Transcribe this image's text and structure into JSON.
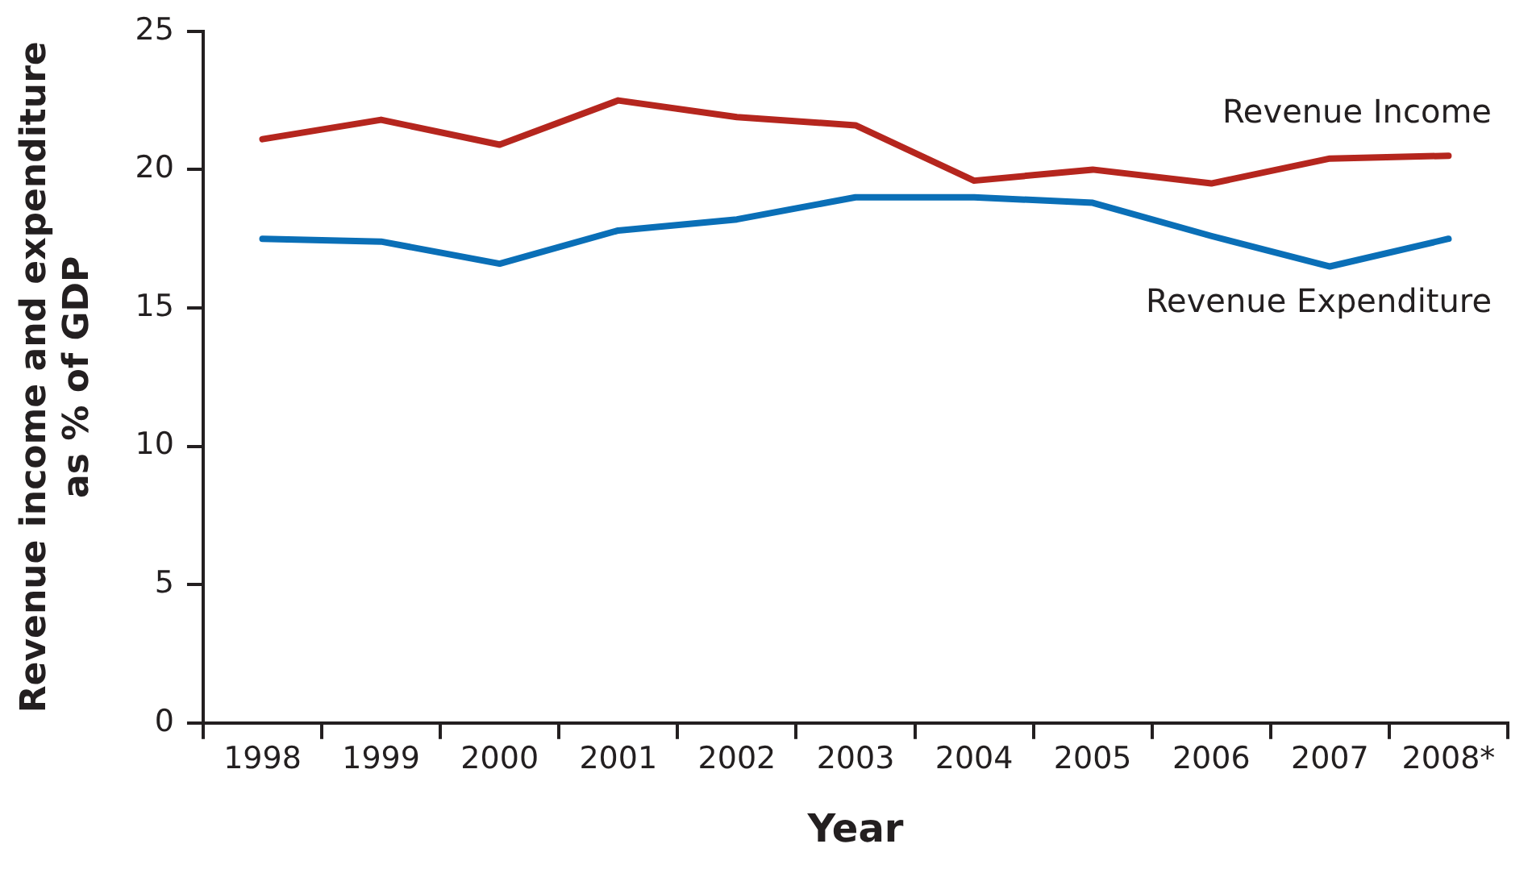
{
  "chart_data": {
    "type": "line",
    "xlabel": "Year",
    "ylabel": "Revenue income and expenditure as % of GDP",
    "categories": [
      "1998",
      "1999",
      "2000",
      "2001",
      "2002",
      "2003",
      "2004",
      "2005",
      "2006",
      "2007",
      "2008*"
    ],
    "series": [
      {
        "name": "Revenue Income",
        "color": "#b5261e",
        "values": [
          21.1,
          21.8,
          20.9,
          22.5,
          21.9,
          21.6,
          19.6,
          20.0,
          19.5,
          20.4,
          20.5
        ]
      },
      {
        "name": "Revenue Expenditure",
        "color": "#0a6fb7",
        "values": [
          17.5,
          17.4,
          16.6,
          17.8,
          18.2,
          19.0,
          19.0,
          18.8,
          17.6,
          16.5,
          17.5
        ]
      }
    ],
    "ylim": [
      0,
      25
    ],
    "yticks": [
      0,
      5,
      10,
      15,
      20,
      25
    ],
    "grid": false,
    "legend": false,
    "marker": "none",
    "line_style": "solid"
  }
}
